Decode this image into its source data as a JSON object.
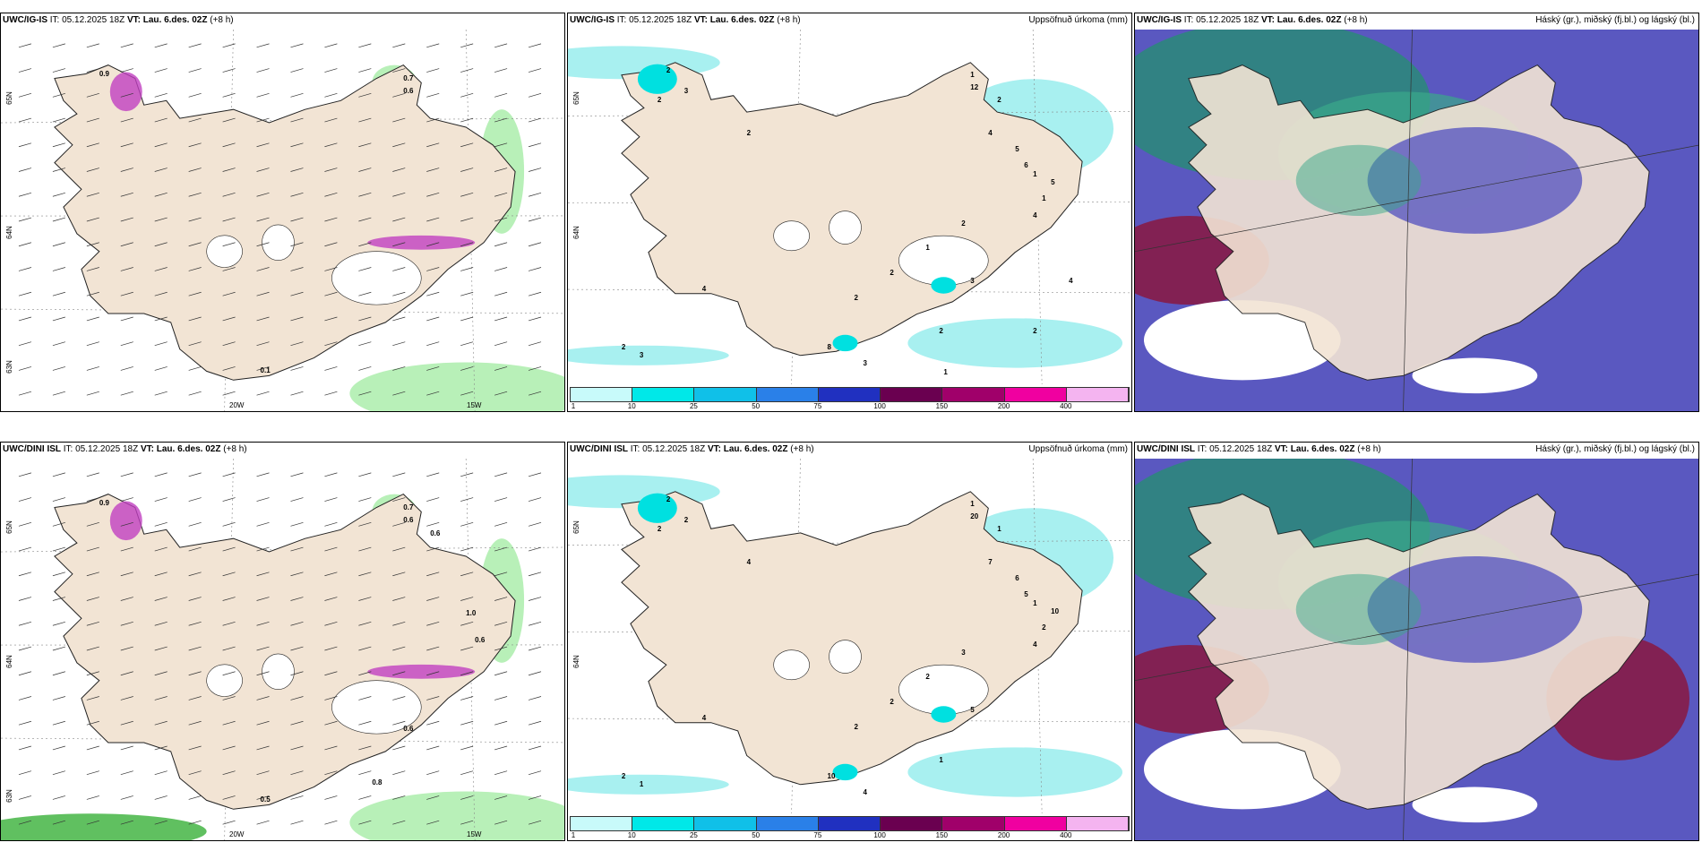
{
  "panels": [
    {
      "model": "UWC/IG-IS",
      "run": "IT: 05.12.2025 18Z",
      "vt": "VT: Lau. 6.des. 02Z",
      "offset": "(+8 h)",
      "title": "",
      "type": "wind",
      "lat_labels": [
        "65N",
        "64N",
        "63N"
      ],
      "lon_labels": [
        "20W",
        "15W"
      ],
      "values": [
        "0.9",
        "0.7",
        "0.6",
        "0.1"
      ]
    },
    {
      "model": "UWC/IG-IS",
      "run": "IT: 05.12.2025 18Z",
      "vt": "VT: Lau. 6.des. 02Z",
      "offset": "(+8 h)",
      "title": "Uppsöfnuð úrkoma (mm)",
      "type": "precip",
      "lat_labels": [
        "65N",
        "64N"
      ],
      "values": [
        "2",
        "1",
        "12",
        "8",
        "2",
        "1",
        "1",
        "2",
        "3",
        "2",
        "2",
        "3",
        "4",
        "5",
        "6",
        "5",
        "4",
        "2",
        "1",
        "2",
        "2",
        "4",
        "3",
        "2",
        "3",
        "1",
        "2",
        "4"
      ]
    },
    {
      "model": "UWC/IG-IS",
      "run": "IT: 05.12.2025 18Z",
      "vt": "VT: Lau. 6.des. 02Z",
      "offset": "(+8 h)",
      "title": "Háský (gr.), miðský (fj.bl.) og lágský (bl.)",
      "type": "cloud"
    },
    {
      "model": "UWC/DINI ISL",
      "run": "IT: 05.12.2025 18Z",
      "vt": "VT: Lau. 6.des. 02Z",
      "offset": "(+8 h)",
      "title": "",
      "type": "wind",
      "lat_labels": [
        "65N",
        "64N",
        "63N"
      ],
      "lon_labels": [
        "20W",
        "15W"
      ],
      "values": [
        "0.9",
        "0.7",
        "0.6",
        "0.5",
        "0.6",
        "1.0",
        "0.6",
        "0.8",
        "0.6"
      ]
    },
    {
      "model": "UWC/DINI ISL",
      "run": "IT: 05.12.2025 18Z",
      "vt": "VT: Lau. 6.des. 02Z",
      "offset": "(+8 h)",
      "title": "Uppsöfnuð úrkoma (mm)",
      "type": "precip",
      "lat_labels": [
        "65N",
        "64N"
      ],
      "values": [
        "2",
        "1",
        "20",
        "10",
        "1",
        "1",
        "2",
        "1",
        "5",
        "4",
        "2",
        "2",
        "7",
        "6",
        "5",
        "10",
        "4",
        "3",
        "2",
        "2",
        "2",
        "4",
        "1",
        "2",
        "4"
      ]
    },
    {
      "model": "UWC/DINI ISL",
      "run": "IT: 05.12.2025 18Z",
      "vt": "VT: Lau. 6.des. 02Z",
      "offset": "(+8 h)",
      "title": "Háský (gr.), miðský (fj.bl.) og lágský (bl.)",
      "type": "cloud"
    }
  ],
  "colorbar": {
    "ticks": [
      "1",
      "10",
      "25",
      "50",
      "75",
      "100",
      "150",
      "200",
      "400"
    ],
    "colors": [
      "#c8fafa",
      "#00e8e8",
      "#10c0e8",
      "#2a80e8",
      "#2030c0",
      "#6a0050",
      "#a0006a",
      "#f000a0",
      "#f4b4f0"
    ]
  },
  "colors": {
    "land": "#f2e4d4",
    "sea": "#ffffff",
    "green": "#b8f0b8",
    "magenta": "#c040c0",
    "cyan": "#a8f0f0",
    "cloud_purple": "#5a58c0",
    "cloud_teal": "#2a8a78",
    "cloud_red": "#8a1840"
  }
}
